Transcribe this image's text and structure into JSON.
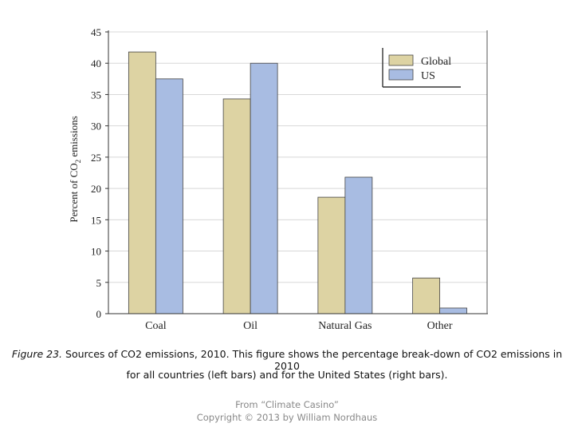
{
  "chart_data": {
    "type": "bar",
    "categories": [
      "Coal",
      "Oil",
      "Natural Gas",
      "Other"
    ],
    "series": [
      {
        "name": "Global",
        "values": [
          41.8,
          34.3,
          18.6,
          5.7
        ],
        "color": "#ddd3a3"
      },
      {
        "name": "US",
        "values": [
          37.5,
          40.0,
          21.8,
          0.9
        ],
        "color": "#a8bce2"
      }
    ],
    "title": "",
    "xlabel": "",
    "ylabel_prefix": "Percent of CO",
    "ylabel_subscript": "2",
    "ylabel_suffix": " emissions",
    "ylim": [
      0,
      45
    ],
    "yticks": [
      0,
      5,
      10,
      15,
      20,
      25,
      30,
      35,
      40,
      45
    ],
    "grid": true,
    "legend_placement": "top-right"
  },
  "caption": {
    "figure_label": "Figure 23.",
    "line1_text": " Sources of CO2 emissions, 2010. This figure shows the percentage break-down of CO2 emissions in 2010",
    "line2_text": "for all countries (left bars) and for the United States (right bars)."
  },
  "credit": {
    "line1": "From “Climate Casino”",
    "line2": "Copyright © 2013 by William Nordhaus"
  }
}
